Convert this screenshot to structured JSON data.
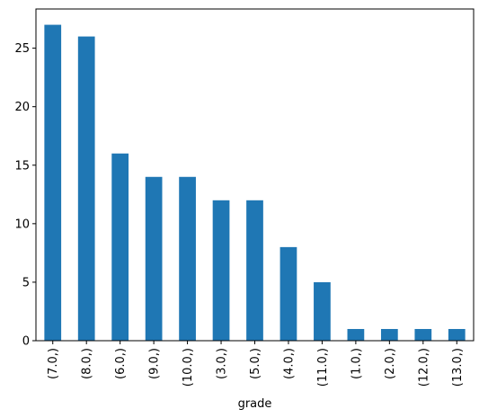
{
  "chart_data": {
    "type": "bar",
    "categories": [
      "(7.0,)",
      "(8.0,)",
      "(6.0,)",
      "(9.0,)",
      "(10.0,)",
      "(3.0,)",
      "(5.0,)",
      "(4.0,)",
      "(11.0,)",
      "(1.0,)",
      "(2.0,)",
      "(12.0,)",
      "(13.0,)"
    ],
    "values": [
      27,
      26,
      16,
      14,
      14,
      12,
      12,
      8,
      5,
      1,
      1,
      1,
      1
    ],
    "xlabel": "grade",
    "ylabel": "",
    "ylim": [
      0,
      28.35
    ],
    "yticks": [
      0,
      5,
      10,
      15,
      20,
      25
    ],
    "grid": false,
    "bar_color": "#1f77b4"
  }
}
